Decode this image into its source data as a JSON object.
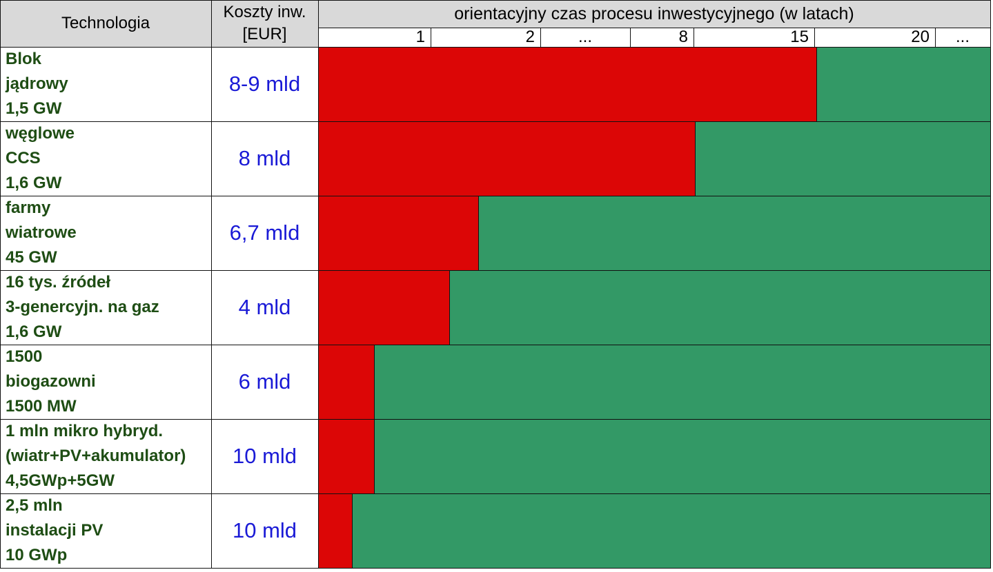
{
  "header": {
    "technology": "Technologia",
    "cost_line1": "Koszty inw.",
    "cost_line2": "[EUR]",
    "time_title": "orientacyjny czas procesu inwestycyjnego (w latach)"
  },
  "colors": {
    "investment_phase": "#dc0606",
    "operation_phase": "#339966",
    "header_bg": "#d9d9d9",
    "technology_text": "#1e4d14",
    "cost_text": "#1a1ad6"
  },
  "chart_data": {
    "type": "bar",
    "orientation": "horizontal",
    "stacked": true,
    "axis_ticks": [
      "1",
      "2",
      "...",
      "8",
      "15",
      "20",
      "..."
    ],
    "categories": [
      {
        "lines": [
          "Blok",
          "jądrowy",
          "1,5 GW"
        ],
        "cost": "8-9 mld",
        "red_end_fraction": 0.741
      },
      {
        "lines": [
          "węglowe",
          "CCS",
          "1,6 GW"
        ],
        "cost": "8 mld",
        "red_end_fraction": 0.561
      },
      {
        "lines": [
          "farmy",
          "wiatrowe",
          "45 GW"
        ],
        "cost": "6,7 mld",
        "red_end_fraction": 0.238
      },
      {
        "lines": [
          "16 tys. źródeł",
          "3-genercyjn. na gaz",
          "1,6 GW"
        ],
        "cost": "4 mld",
        "red_end_fraction": 0.195
      },
      {
        "lines": [
          "1500",
          "biogazowni",
          "1500 MW"
        ],
        "cost": "6 mld",
        "red_end_fraction": 0.083
      },
      {
        "lines": [
          "1 mln mikro hybryd.",
          "(wiatr+PV+akumulator)",
          "4,5GWp+5GW"
        ],
        "cost": "10 mld",
        "red_end_fraction": 0.083
      },
      {
        "lines": [
          "2,5 mln",
          "instalacji PV",
          "10 GWp"
        ],
        "cost": "10 mld",
        "red_end_fraction": 0.05
      }
    ]
  }
}
